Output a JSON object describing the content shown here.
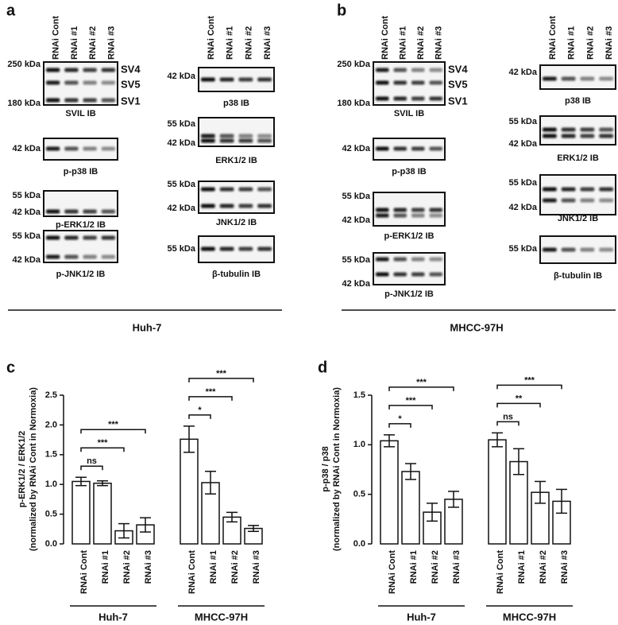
{
  "panels": [
    {
      "label": "a",
      "cell_line": "Huh-7",
      "lanes": [
        "RNAi Cont",
        "RNAi #1",
        "RNAi #2",
        "RNAi #3"
      ],
      "left": [
        {
          "caption": "SVIL IB",
          "markers": [
            "250 kDa",
            "180 kDa"
          ],
          "bands": [
            "SV4",
            "SV5",
            "SV1"
          ]
        },
        {
          "caption": "p-p38 IB",
          "markers": [
            "42 kDa"
          ],
          "bands": []
        },
        {
          "caption": "p-ERK1/2 IB",
          "markers": [
            "55 kDa",
            "42 kDa"
          ],
          "bands": []
        },
        {
          "caption": "p-JNK1/2 IB",
          "markers": [
            "55 kDa",
            "42 kDa"
          ],
          "bands": []
        }
      ],
      "right": [
        {
          "caption": "p38 IB",
          "markers": [
            "42 kDa"
          ],
          "bands": []
        },
        {
          "caption": "ERK1/2 IB",
          "markers": [
            "55 kDa",
            "42 kDa"
          ],
          "bands": []
        },
        {
          "caption": "JNK1/2 IB",
          "markers": [
            "55 kDa",
            "42 kDa"
          ],
          "bands": []
        },
        {
          "caption": "β-tubulin IB",
          "markers": [
            "55 kDa"
          ],
          "bands": []
        }
      ]
    },
    {
      "label": "b",
      "cell_line": "MHCC-97H",
      "lanes": [
        "RNAi Cont",
        "RNAi #1",
        "RNAi #2",
        "RNAi #3"
      ],
      "left": [
        {
          "caption": "SVIL IB",
          "markers": [
            "250 kDa",
            "180 kDa"
          ],
          "bands": [
            "SV4",
            "SV5",
            "SV1"
          ]
        },
        {
          "caption": "p-p38 IB",
          "markers": [
            "42 kDa"
          ],
          "bands": []
        },
        {
          "caption": "p-ERK1/2 IB",
          "markers": [
            "55 kDa",
            "42 kDa"
          ],
          "bands": []
        },
        {
          "caption": "p-JNK1/2 IB",
          "markers": [
            "55 kDa",
            "42 kDa"
          ],
          "bands": []
        }
      ],
      "right": [
        {
          "caption": "p38 IB",
          "markers": [
            "42 kDa"
          ],
          "bands": []
        },
        {
          "caption": "ERK1/2 IB",
          "markers": [
            "55 kDa",
            "42 kDa"
          ],
          "bands": []
        },
        {
          "caption": "JNK1/2 IB",
          "markers": [
            "55 kDa",
            "42 kDa"
          ],
          "bands": []
        },
        {
          "caption": "β-tubulin IB",
          "markers": [
            "55 kDa"
          ],
          "bands": []
        }
      ]
    }
  ],
  "chart_data": [
    {
      "type": "bar",
      "label": "c",
      "ylabel": [
        "p-ERK1/2 / ERK1/2",
        "(normalized by RNAi Cont in Normoxia)"
      ],
      "categories": [
        "RNAi Cont",
        "RNAi #1",
        "RNAi #2",
        "RNAi #3"
      ],
      "ylim": [
        0,
        2.5
      ],
      "yticks": [
        {
          "value": 0,
          "label": "0.0"
        },
        {
          "value": 0.5,
          "label": "0.5"
        },
        {
          "value": 1,
          "label": "1.0"
        },
        {
          "value": 1.5,
          "label": "1.5"
        },
        {
          "value": 2,
          "label": "2.0"
        },
        {
          "value": 2.5,
          "label": "2.5"
        }
      ],
      "series": [
        {
          "name": "Huh-7",
          "color": "#ffffff",
          "values": [
            1.05,
            1.02,
            0.22,
            0.32
          ],
          "errors": [
            0.07,
            0.04,
            0.12,
            0.12
          ],
          "significance": [
            "ns",
            "***",
            "***"
          ]
        },
        {
          "name": "MHCC-97H",
          "color": "#ffffff",
          "values": [
            1.76,
            1.03,
            0.45,
            0.26
          ],
          "errors": [
            0.22,
            0.19,
            0.08,
            0.05
          ],
          "significance": [
            "*",
            "***",
            "***"
          ]
        }
      ]
    },
    {
      "type": "bar",
      "label": "d",
      "ylabel": [
        "p-p38 / p38",
        "(normalized by RNAi Cont in Normoxia)"
      ],
      "categories": [
        "RNAi Cont",
        "RNAi #1",
        "RNAi #2",
        "RNAi #3"
      ],
      "ylim": [
        0,
        1.5
      ],
      "yticks": [
        {
          "value": 0,
          "label": "0.0"
        },
        {
          "value": 0.5,
          "label": "0.5"
        },
        {
          "value": 1,
          "label": "1.0"
        },
        {
          "value": 1.5,
          "label": "1.5"
        }
      ],
      "series": [
        {
          "name": "Huh-7",
          "color": "#ffffff",
          "values": [
            1.04,
            0.73,
            0.32,
            0.45
          ],
          "errors": [
            0.06,
            0.08,
            0.09,
            0.08
          ],
          "significance": [
            "*",
            "***",
            "***"
          ]
        },
        {
          "name": "MHCC-97H",
          "color": "#ffffff",
          "values": [
            1.05,
            0.83,
            0.52,
            0.43
          ],
          "errors": [
            0.07,
            0.13,
            0.11,
            0.12
          ],
          "significance": [
            "ns",
            "**",
            "***"
          ]
        }
      ]
    }
  ]
}
